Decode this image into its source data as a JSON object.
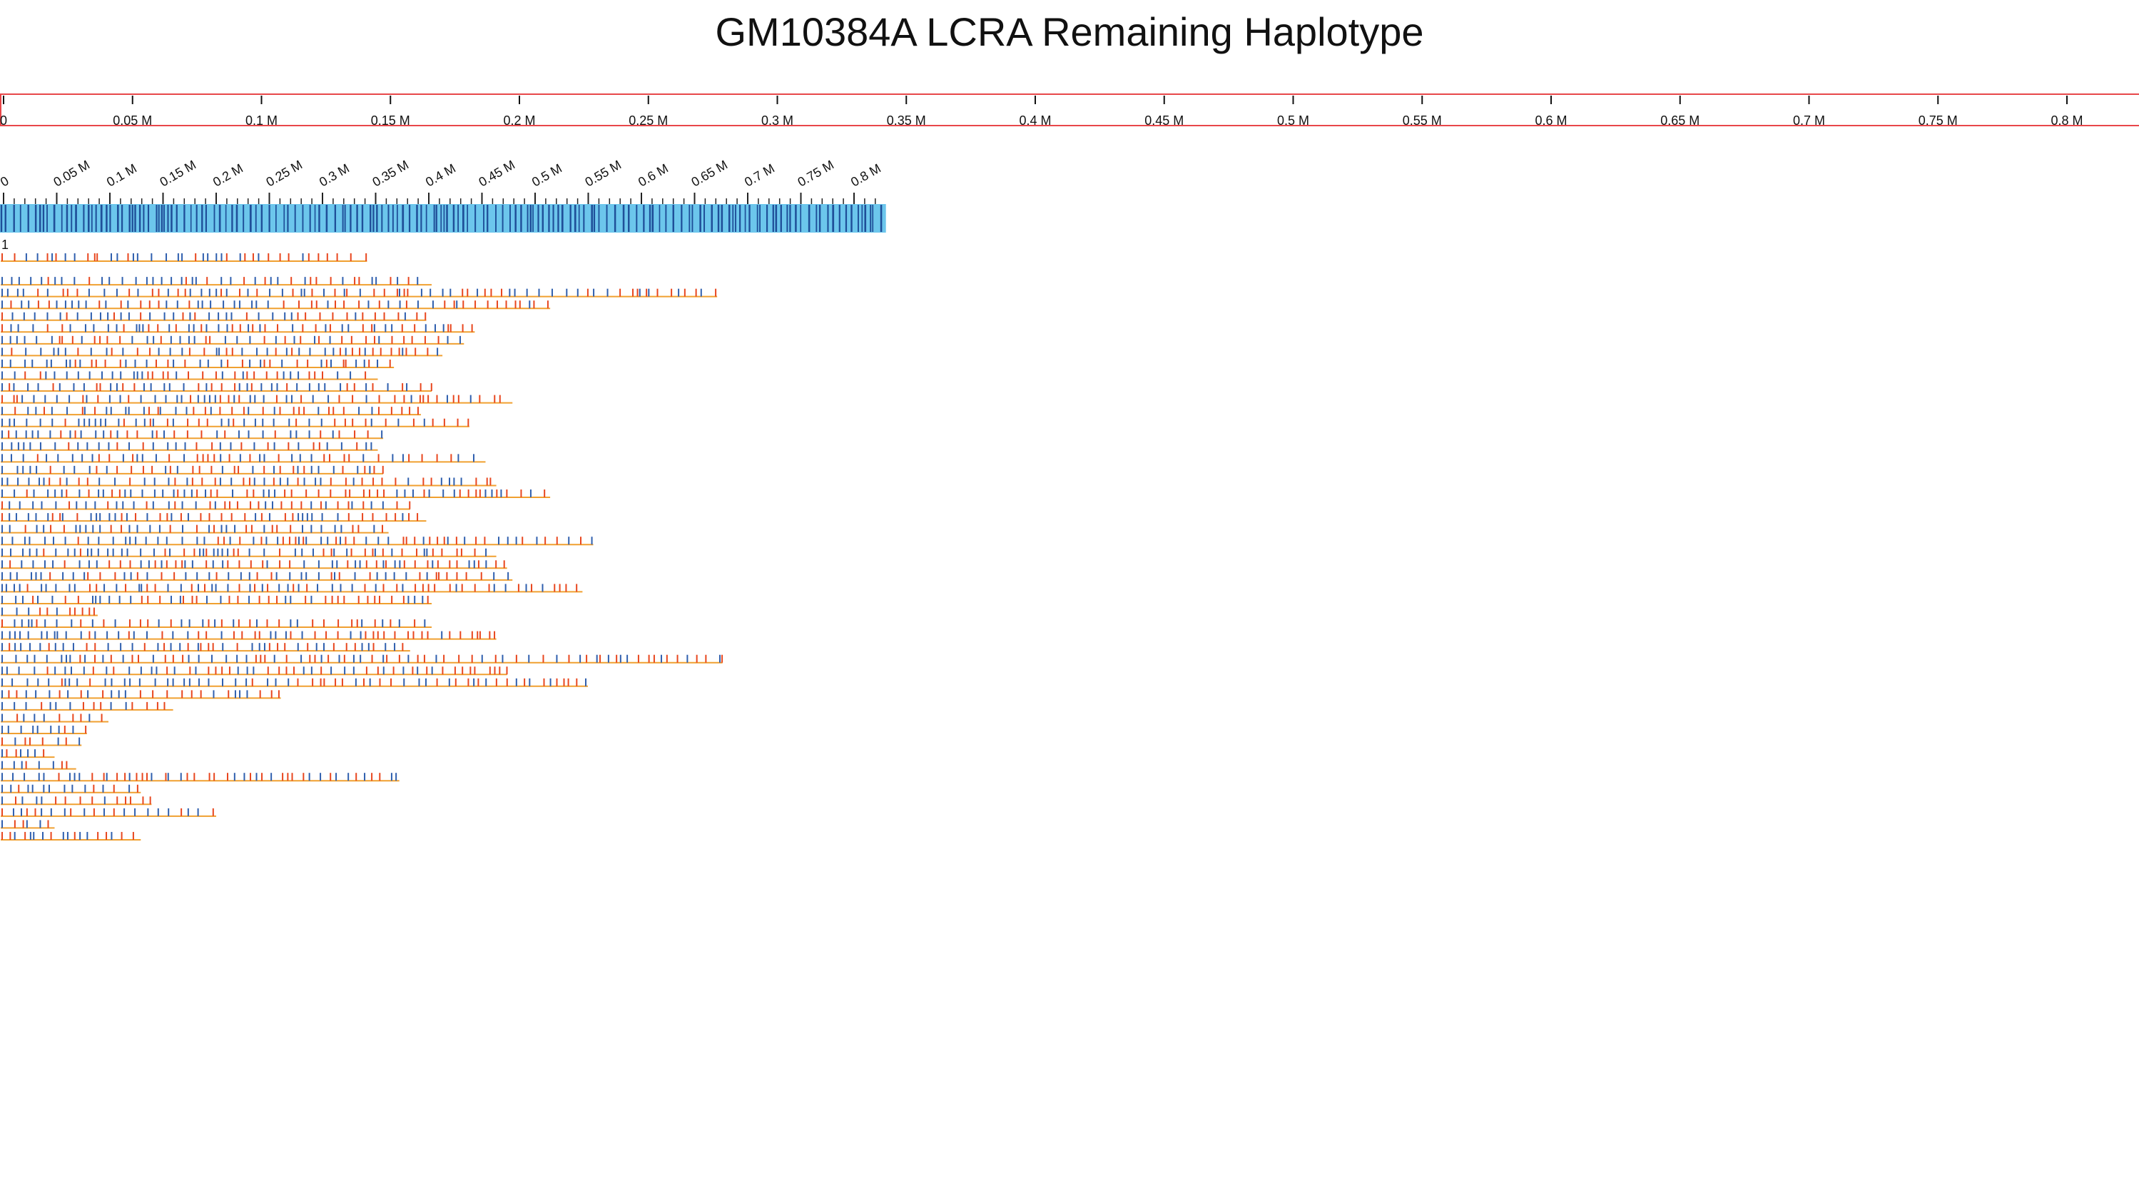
{
  "title": "GM10384A LCRA Remaining Haplotype",
  "top_ruler": {
    "labels": [
      "0",
      "0.05 M",
      "0.1 M",
      "0.15 M",
      "0.2 M",
      "0.25 M",
      "0.3 M",
      "0.35 M",
      "0.4 M",
      "0.45 M",
      "0.5 M",
      "0.55 M",
      "0.6 M",
      "0.65 M",
      "0.7 M",
      "0.75 M",
      "0.8 M"
    ],
    "border_color": "#e8474a"
  },
  "reference_map": {
    "labels": [
      "0",
      "0.05 M",
      "0.1 M",
      "0.15 M",
      "0.2 M",
      "0.25 M",
      "0.3 M",
      "0.35 M",
      "0.4 M",
      "0.45 M",
      "0.5 M",
      "0.55 M",
      "0.6 M",
      "0.65 M",
      "0.7 M",
      "0.75 M",
      "0.8 M"
    ],
    "fill_color": "#6cc6ec",
    "mark_color": "#1f4f99",
    "track_label": "1"
  },
  "colors": {
    "molecule_line": "#f0a030",
    "aligned_label": "#2f5fae",
    "unaligned_label": "#e8461e"
  },
  "molecules": [
    [
      0.0,
      0.34
    ],
    [
      0.0,
      0.0
    ],
    [
      0.0,
      0.4
    ],
    [
      0.0,
      0.665
    ],
    [
      0.0,
      0.51
    ],
    [
      0.0,
      0.395
    ],
    [
      0.0,
      0.44
    ],
    [
      0.0,
      0.43
    ],
    [
      0.0,
      0.41
    ],
    [
      0.0,
      0.365
    ],
    [
      0.0,
      0.35
    ],
    [
      0.0,
      0.4
    ],
    [
      0.0,
      0.475
    ],
    [
      0.0,
      0.39
    ],
    [
      0.0,
      0.435
    ],
    [
      0.0,
      0.355
    ],
    [
      0.0,
      0.35
    ],
    [
      0.0,
      0.45
    ],
    [
      0.0,
      0.355
    ],
    [
      0.0,
      0.46
    ],
    [
      0.0,
      0.51
    ],
    [
      0.0,
      0.38
    ],
    [
      0.0,
      0.395
    ],
    [
      0.0,
      0.36
    ],
    [
      0.0,
      0.55
    ],
    [
      0.0,
      0.46
    ],
    [
      0.0,
      0.47
    ],
    [
      0.0,
      0.475
    ],
    [
      0.0,
      0.54
    ],
    [
      0.0,
      0.4
    ],
    [
      0.0,
      0.09
    ],
    [
      0.0,
      0.4
    ],
    [
      0.0,
      0.46
    ],
    [
      0.0,
      0.38
    ],
    [
      0.0,
      0.67
    ],
    [
      0.0,
      0.47
    ],
    [
      0.0,
      0.545
    ],
    [
      0.0,
      0.26
    ],
    [
      0.0,
      0.16
    ],
    [
      0.0,
      0.1
    ],
    [
      0.0,
      0.08
    ],
    [
      0.0,
      0.075
    ],
    [
      0.0,
      0.05
    ],
    [
      0.0,
      0.07
    ],
    [
      0.0,
      0.37
    ],
    [
      0.0,
      0.13
    ],
    [
      0.0,
      0.14
    ],
    [
      0.0,
      0.2
    ],
    [
      0.0,
      0.05
    ],
    [
      0.0,
      0.13
    ]
  ]
}
